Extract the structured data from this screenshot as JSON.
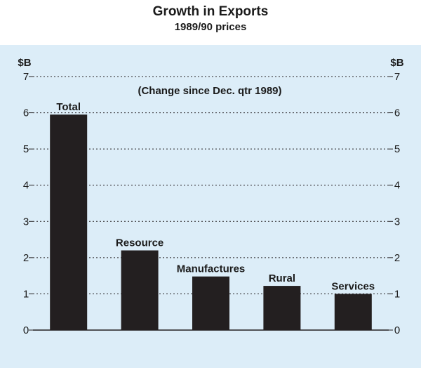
{
  "chart_data": {
    "type": "bar",
    "title": "Growth in Exports",
    "subtitle": "1989/90 prices",
    "annotation": "(Change since Dec. qtr 1989)",
    "unit_left": "$B",
    "unit_right": "$B",
    "categories": [
      "Total",
      "Resource",
      "Manufactures",
      "Rural",
      "Services"
    ],
    "values": [
      5.95,
      2.2,
      1.48,
      1.22,
      1.0
    ],
    "ylim": [
      0,
      7
    ],
    "yticks": [
      0,
      1,
      2,
      3,
      4,
      5,
      6,
      7
    ],
    "grid": true,
    "colors": {
      "bar": "#231f20",
      "panel": "#dcedf8",
      "grid": "#231f20"
    }
  }
}
